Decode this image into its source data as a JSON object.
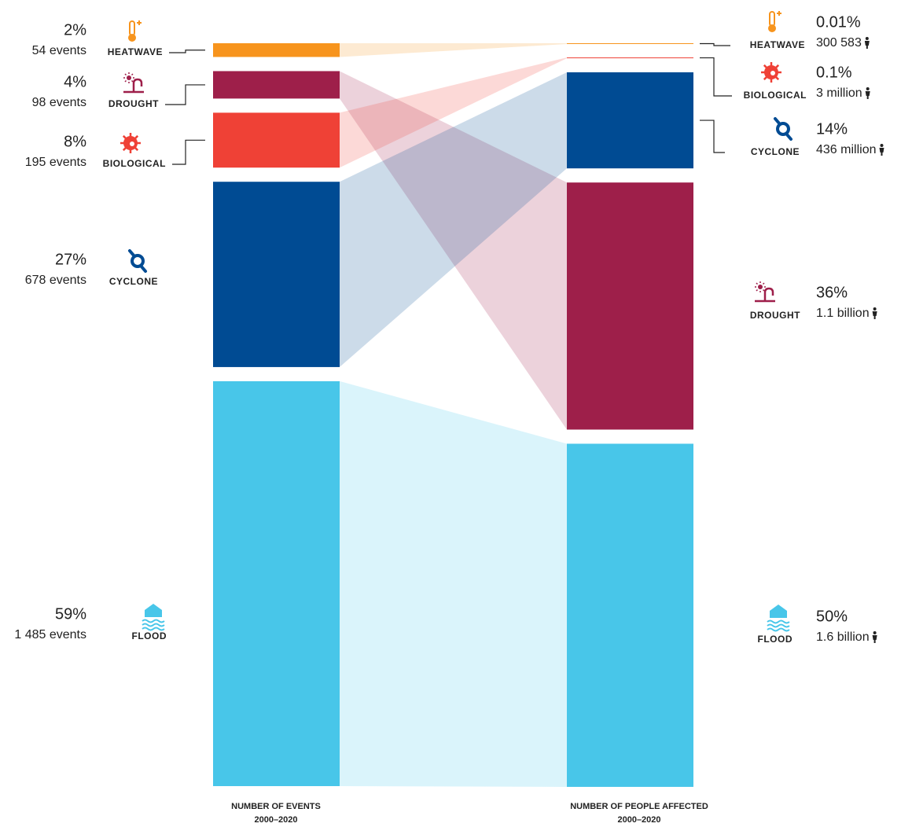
{
  "chart_data": {
    "type": "alluvial",
    "series": [
      {
        "name": "NUMBER OF EVENTS",
        "period": "2000–2020",
        "categories": [
          "HEATWAVE",
          "DROUGHT",
          "BIOLOGICAL",
          "CYCLONE",
          "FLOOD"
        ],
        "colors": [
          "#f7941d",
          "#9e1f4a",
          "#ef4136",
          "#004b93",
          "#48c6e9"
        ],
        "values": [
          2,
          4,
          8,
          27,
          59
        ],
        "value_labels": [
          "2%",
          "4%",
          "8%",
          "27%",
          "59%"
        ],
        "details": [
          "54 events",
          "98 events",
          "195 events",
          "678 events",
          "1 485 events"
        ]
      },
      {
        "name": "NUMBER OF PEOPLE AFFECTED",
        "period": "2000–2020",
        "categories": [
          "HEATWAVE",
          "BIOLOGICAL",
          "CYCLONE",
          "DROUGHT",
          "FLOOD"
        ],
        "colors": [
          "#f7941d",
          "#ef4136",
          "#004b93",
          "#9e1f4a",
          "#48c6e9"
        ],
        "values": [
          0.01,
          0.1,
          14,
          36,
          50
        ],
        "value_labels": [
          "0.01%",
          "0.1%",
          "14%",
          "36%",
          "50%"
        ],
        "details": [
          "300 583",
          "3 million",
          "436 million",
          "1.1 billion",
          "1.6 billion"
        ]
      }
    ]
  }
}
